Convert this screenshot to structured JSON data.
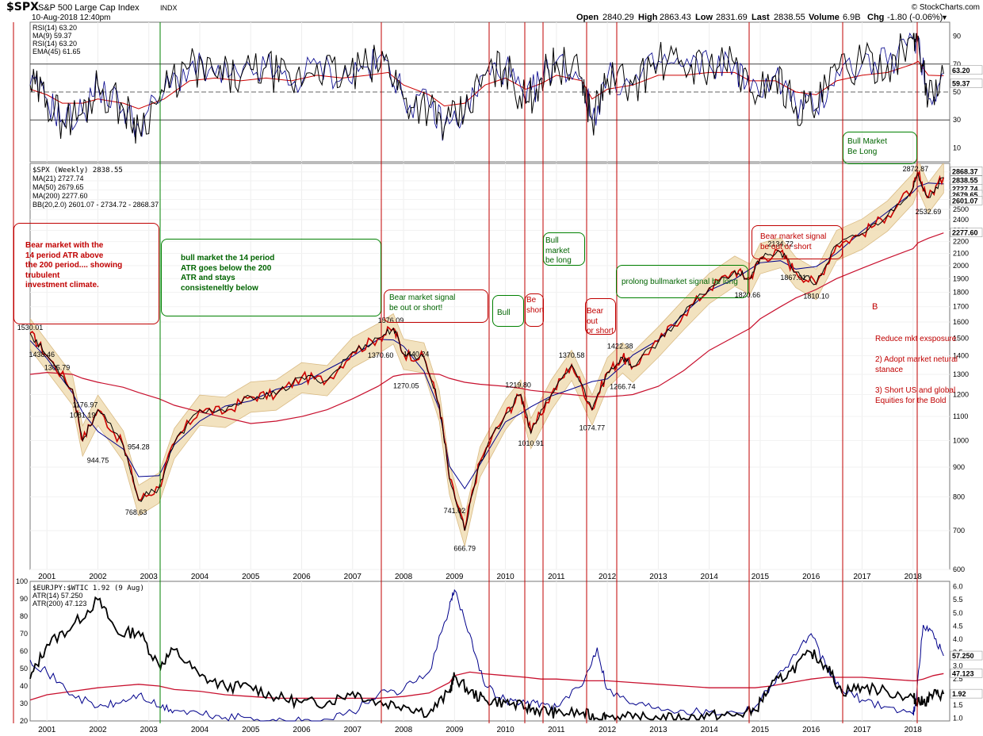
{
  "header": {
    "symbol": "$SPX",
    "name": "S&P 500 Large Cap Index",
    "exchange": "INDX",
    "date": "10-Aug-2018 12:40pm",
    "watermark": "© StockCharts.com",
    "open_label": "Open",
    "open": "2840.29",
    "high_label": "High",
    "high": "2863.43",
    "low_label": "Low",
    "low": "2831.69",
    "last_label": "Last",
    "last": "2838.55",
    "volume_label": "Volume",
    "volume": "6.9B",
    "chg_label": "Chg",
    "chg": "-1.80 (-0.06%)"
  },
  "rsi_panel": {
    "legend": [
      "RSI(14) 63.20",
      "MA(9) 59.37",
      "RSI(14) 63.20",
      "EMA(45) 61.65"
    ],
    "right_labels": [
      "90",
      "70",
      "50",
      "30",
      "10"
    ],
    "value_tags": [
      "63.20",
      "59.37"
    ]
  },
  "price_panel": {
    "legend": [
      "$SPX (Weekly) 2838.55",
      "MA(21) 2727.74",
      "MA(50) 2679.65",
      "MA(200) 2277.60",
      "BB(20,2.0) 2601.07 - 2734.72 - 2868.37"
    ],
    "value_tags": [
      "2868.37",
      "2838.55",
      "2727.74",
      "2679.65",
      "2601.07",
      "2277.60"
    ],
    "peak_labels": [
      "1530.01",
      "1438.46",
      "1305.79",
      "1176.97",
      "1081.19",
      "944.75",
      "954.28",
      "768.63",
      "1576.09",
      "1440.24",
      "1370.60",
      "1270.05",
      "741.02",
      "666.79",
      "1219.80",
      "1010.91",
      "1370.58",
      "1074.77",
      "1422.38",
      "1266.74",
      "2134.72",
      "1820.66",
      "1867.01",
      "1810.10",
      "2872.87",
      "2532.69"
    ]
  },
  "bottom_panel": {
    "legend": [
      "$EURJPY:$WTIC 1.92 (9 Aug)",
      "ATR(14) 57.250",
      "ATR(200) 47.123"
    ],
    "left_labels": [
      "100",
      "90",
      "80",
      "70",
      "60",
      "50",
      "40",
      "30",
      "20"
    ],
    "right_labels": [
      "6.0",
      "5.5",
      "5.0",
      "4.5",
      "4.0",
      "3.5",
      "3.0",
      "2.5",
      "2.0",
      "1.5",
      "1.0"
    ],
    "value_tags": [
      "57.250",
      "47.123",
      "1.92"
    ]
  },
  "x_axis": [
    "2001",
    "2002",
    "2003",
    "2004",
    "2005",
    "2006",
    "2007",
    "2008",
    "2009",
    "2010",
    "2011",
    "2012",
    "2013",
    "2014",
    "2015",
    "2016",
    "2017",
    "2018"
  ],
  "annotations": {
    "bear_climate": "Bear market with the\n14 period ATR above\nthe 200 period.... showing\ntrubulent\ninvestment climate.",
    "bull_atr": "bull market the 14 period\nATR goes below the 200\nATR and stays\nconsisteneltly below",
    "bear_signal_2008": "Bear market signal\nbe out or short!",
    "bull_2010": "Bull",
    "be_short_2010": "Be\nshort",
    "bull_market_long": "Bull market\nbe long",
    "bear_out_2011": "Bear out\nor short",
    "prolong_bull": "prolong bullmarket signal be long",
    "bear_signal_2014": "Bear market signal\nbe out or short",
    "bull_market_2017": "Bull Market\nBe Long",
    "b_marker": "B",
    "reduce": "Reduce mkt exsposure",
    "adopt": "2) Adopt market netural\nstanace",
    "short_us": "3) Short US and global\nEquities for the Bold"
  },
  "colors": {
    "price_up": "#000000",
    "price_down": "#cc0000",
    "ma21": "#006400",
    "ma50": "#00008b",
    "ma200": "#c8102e",
    "bb_fill": "#f0deb4",
    "bb_edge": "#d4b070",
    "rsi_line": "#000000",
    "ema45": "#cc0000",
    "ratio_line": "#000000",
    "atr14": "#00008b",
    "atr200": "#c8102e",
    "signal_red": "#c00000",
    "signal_green": "#008000"
  },
  "chart_data": [
    {
      "type": "line",
      "title": "$SPX S&P 500 Large Cap Index (Weekly)",
      "y_scale": "log",
      "ylim": [
        600,
        3000
      ],
      "x": [
        2000.67,
        2001.0,
        2001.5,
        2001.7,
        2002.0,
        2002.5,
        2002.8,
        2003.2,
        2003.5,
        2004.0,
        2004.5,
        2005.0,
        2005.5,
        2006.0,
        2006.5,
        2007.0,
        2007.5,
        2007.8,
        2008.0,
        2008.4,
        2008.7,
        2008.9,
        2009.2,
        2009.5,
        2010.0,
        2010.3,
        2010.5,
        2010.9,
        2011.3,
        2011.7,
        2012.0,
        2012.3,
        2012.5,
        2013.0,
        2013.5,
        2014.0,
        2014.5,
        2014.8,
        2015.0,
        2015.4,
        2015.7,
        2016.1,
        2016.5,
        2017.0,
        2017.5,
        2018.0,
        2018.1,
        2018.3,
        2018.6
      ],
      "series": [
        {
          "name": "$SPX",
          "values": [
            1530,
            1400,
            1225,
            1000,
            1130,
            980,
            790,
            830,
            990,
            1130,
            1120,
            1190,
            1200,
            1285,
            1270,
            1420,
            1500,
            1560,
            1410,
            1390,
            1150,
            860,
            700,
            920,
            1110,
            1200,
            1030,
            1200,
            1350,
            1130,
            1310,
            1390,
            1340,
            1480,
            1650,
            1830,
            1960,
            1900,
            2060,
            2110,
            1950,
            1860,
            2170,
            2270,
            2440,
            2720,
            2870,
            2620,
            2838
          ]
        },
        {
          "name": "MA(200)",
          "values": [
            1300,
            1310,
            1300,
            1280,
            1260,
            1235,
            1210,
            1180,
            1150,
            1120,
            1095,
            1070,
            1080,
            1100,
            1130,
            1180,
            1240,
            1290,
            1300,
            1305,
            1300,
            1280,
            1260,
            1250,
            1240,
            1230,
            1220,
            1210,
            1200,
            1190,
            1190,
            1195,
            1200,
            1240,
            1320,
            1430,
            1510,
            1560,
            1620,
            1700,
            1760,
            1820,
            1900,
            1980,
            2060,
            2140,
            2190,
            2230,
            2277
          ]
        }
      ],
      "last_values": {
        "price": 2838.55,
        "ma21": 2727.74,
        "ma50": 2679.65,
        "ma200": 2277.6,
        "bb_lower": 2601.07,
        "bb_mid": 2734.72,
        "bb_upper": 2868.37
      },
      "labels": [
        {
          "x": 2000.67,
          "y": 1530.01
        },
        {
          "x": 2000.9,
          "y": 1438.46
        },
        {
          "x": 2001.2,
          "y": 1305.79
        },
        {
          "x": 2001.75,
          "y": 1176.97
        },
        {
          "x": 2001.7,
          "y": 1081.19
        },
        {
          "x": 2002.0,
          "y": 944.75
        },
        {
          "x": 2002.8,
          "y": 954.28
        },
        {
          "x": 2002.75,
          "y": 768.63
        },
        {
          "x": 2007.75,
          "y": 1576.09
        },
        {
          "x": 2008.25,
          "y": 1440.24
        },
        {
          "x": 2007.55,
          "y": 1370.6
        },
        {
          "x": 2008.05,
          "y": 1270.05
        },
        {
          "x": 2009.0,
          "y": 741.02
        },
        {
          "x": 2009.2,
          "y": 666.79
        },
        {
          "x": 2010.25,
          "y": 1219.8
        },
        {
          "x": 2010.5,
          "y": 1010.91
        },
        {
          "x": 2011.3,
          "y": 1370.58
        },
        {
          "x": 2011.7,
          "y": 1074.77
        },
        {
          "x": 2012.25,
          "y": 1422.38
        },
        {
          "x": 2012.3,
          "y": 1266.74
        },
        {
          "x": 2015.4,
          "y": 2134.72
        },
        {
          "x": 2014.75,
          "y": 1820.66
        },
        {
          "x": 2015.65,
          "y": 1867.01
        },
        {
          "x": 2016.1,
          "y": 1810.1
        },
        {
          "x": 2018.05,
          "y": 2872.87
        },
        {
          "x": 2018.3,
          "y": 2532.69
        }
      ]
    },
    {
      "type": "line",
      "title": "RSI(14)",
      "ylim": [
        0,
        100
      ],
      "gridlines": [
        30,
        50,
        70
      ],
      "x": [
        2000.67,
        2001.0,
        2001.3,
        2001.7,
        2002.0,
        2002.5,
        2002.8,
        2003.3,
        2003.8,
        2004.3,
        2004.8,
        2005.3,
        2005.8,
        2006.3,
        2006.8,
        2007.3,
        2007.7,
        2008.0,
        2008.5,
        2008.8,
        2009.2,
        2009.6,
        2010.0,
        2010.4,
        2010.7,
        2011.0,
        2011.5,
        2011.7,
        2012.0,
        2012.5,
        2013.0,
        2013.5,
        2014.0,
        2014.5,
        2014.8,
        2015.3,
        2015.7,
        2016.1,
        2016.5,
        2017.0,
        2017.5,
        2018.0,
        2018.1,
        2018.3,
        2018.6
      ],
      "series": [
        {
          "name": "RSI(14)",
          "values": [
            55,
            45,
            30,
            35,
            55,
            38,
            25,
            50,
            68,
            62,
            60,
            68,
            55,
            70,
            60,
            68,
            72,
            45,
            40,
            25,
            35,
            62,
            68,
            42,
            60,
            72,
            60,
            30,
            60,
            55,
            72,
            68,
            70,
            70,
            50,
            62,
            40,
            38,
            65,
            70,
            70,
            88,
            90,
            45,
            63.2
          ]
        },
        {
          "name": "EMA(45)",
          "values": [
            52,
            48,
            42,
            42,
            45,
            42,
            38,
            45,
            58,
            60,
            58,
            60,
            58,
            62,
            60,
            62,
            64,
            55,
            48,
            40,
            42,
            55,
            60,
            52,
            56,
            62,
            58,
            45,
            52,
            55,
            62,
            62,
            64,
            64,
            58,
            58,
            50,
            48,
            58,
            62,
            64,
            70,
            72,
            62,
            61.65
          ]
        }
      ]
    },
    {
      "type": "line",
      "title": "$EURJPY:$WTIC 1.92 (9 Aug)",
      "ylim": [
        20,
        100
      ],
      "y2lim": [
        0.9,
        6.2
      ],
      "x": [
        2000.67,
        2001.0,
        2001.5,
        2002.0,
        2002.4,
        2002.8,
        2003.2,
        2003.5,
        2004.0,
        2004.5,
        2005.0,
        2005.5,
        2006.0,
        2006.5,
        2007.0,
        2007.5,
        2008.0,
        2008.5,
        2008.9,
        2009.0,
        2009.3,
        2009.6,
        2010.0,
        2010.4,
        2010.7,
        2011.0,
        2011.5,
        2011.8,
        2012.0,
        2012.5,
        2013.0,
        2013.5,
        2014.0,
        2014.5,
        2014.9,
        2015.2,
        2015.6,
        2016.0,
        2016.3,
        2016.6,
        2017.0,
        2017.5,
        2018.0,
        2018.05,
        2018.2,
        2018.4,
        2018.6
      ],
      "series": [
        {
          "name": "$EURJPY:$WTIC",
          "axis": "right",
          "values": [
            2.5,
            3.8,
            4.5,
            5.5,
            4.2,
            4.3,
            3.0,
            3.6,
            2.6,
            2.2,
            2.2,
            1.8,
            1.6,
            1.6,
            2.0,
            1.6,
            1.5,
            1.2,
            2.0,
            2.6,
            2.0,
            1.7,
            1.6,
            1.4,
            1.3,
            1.2,
            1.2,
            1.0,
            1.1,
            1.0,
            1.0,
            1.0,
            1.1,
            1.1,
            1.3,
            2.2,
            2.8,
            3.5,
            3.0,
            2.0,
            2.2,
            2.0,
            1.8,
            1.7,
            1.6,
            1.9,
            1.92
          ]
        },
        {
          "name": "ATR(14)",
          "axis": "left",
          "values": [
            55,
            48,
            35,
            28,
            30,
            35,
            28,
            26,
            24,
            22,
            22,
            20,
            20,
            21,
            25,
            35,
            38,
            48,
            85,
            95,
            70,
            40,
            32,
            30,
            30,
            28,
            40,
            62,
            38,
            30,
            28,
            26,
            25,
            25,
            28,
            40,
            55,
            70,
            50,
            38,
            32,
            28,
            24,
            30,
            75,
            70,
            57.25
          ]
        },
        {
          "name": "ATR(200)",
          "axis": "left",
          "values": [
            32,
            35,
            37,
            39,
            40,
            41,
            40,
            38,
            37,
            35,
            34,
            33,
            33,
            33,
            33,
            33,
            34,
            36,
            42,
            46,
            48,
            47,
            46,
            45,
            44,
            44,
            43,
            43,
            43,
            42,
            41,
            40,
            39,
            39,
            39,
            40,
            42,
            44,
            45,
            45,
            45,
            44,
            43,
            43,
            44,
            46,
            47.123
          ]
        }
      ]
    }
  ]
}
